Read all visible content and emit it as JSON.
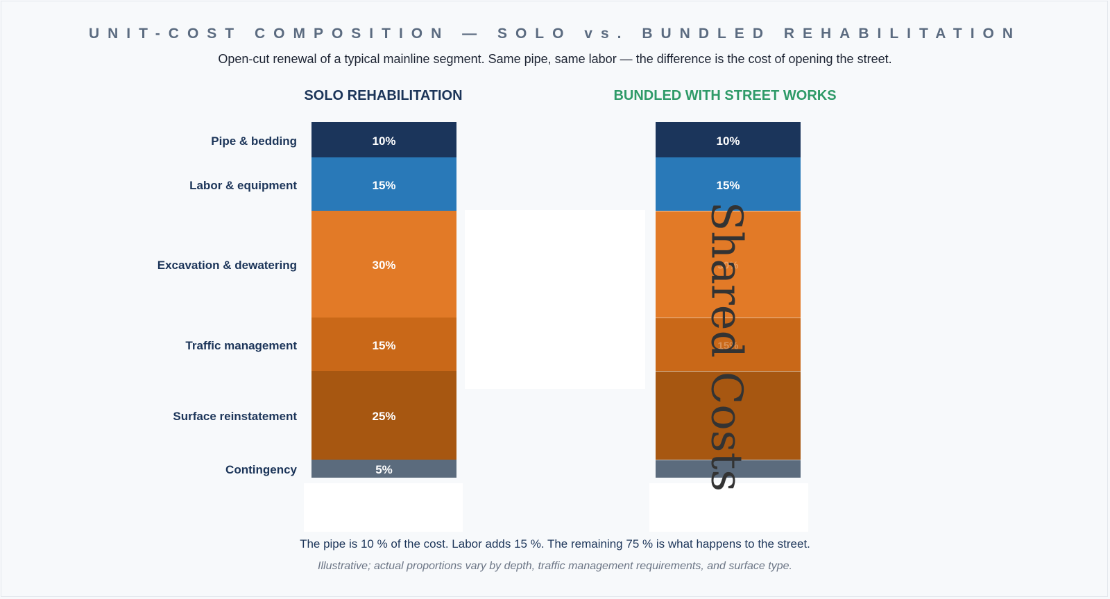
{
  "title": "UNIT-COST COMPOSITION — SOLO vs. BUNDLED REHABILITATION",
  "subtitle": "Open-cut renewal of a typical mainline segment. Same pipe, same labor — the difference is the cost of opening the street.",
  "annotation": "Shared Costs",
  "footnote": "The pipe is 10 % of the cost. Labor adds 15 %. The remaining 75 % is what happens to the street.",
  "caveat": "Illustrative; actual proportions vary by depth, traffic management requirements, and surface type.",
  "colors": {
    "pipe": "#1b355b",
    "labor": "#2979b8",
    "excavation": "#e27a27",
    "traffic": "#c96818",
    "surface": "#a75711",
    "contingency": "#5b6b7d",
    "solo_title": "#1c3559",
    "bundled_title": "#2e9a68"
  },
  "chart_data": {
    "type": "bar",
    "stacked": true,
    "categories": [
      "Pipe & bedding",
      "Labor & equipment",
      "Excavation & dewatering",
      "Traffic management",
      "Surface reinstatement",
      "Contingency"
    ],
    "series": [
      {
        "name": "SOLO REHABILITATION",
        "values": [
          10,
          15,
          30,
          15,
          25,
          5
        ],
        "labels": [
          "10%",
          "15%",
          "30%",
          "15%",
          "25%",
          "5%"
        ]
      },
      {
        "name": "BUNDLED WITH STREET WORKS",
        "values": [
          10,
          15,
          30,
          15,
          25,
          5
        ],
        "labels": [
          "10%",
          "15%",
          "30%",
          "15%",
          "",
          ""
        ]
      }
    ],
    "unit": "%"
  }
}
